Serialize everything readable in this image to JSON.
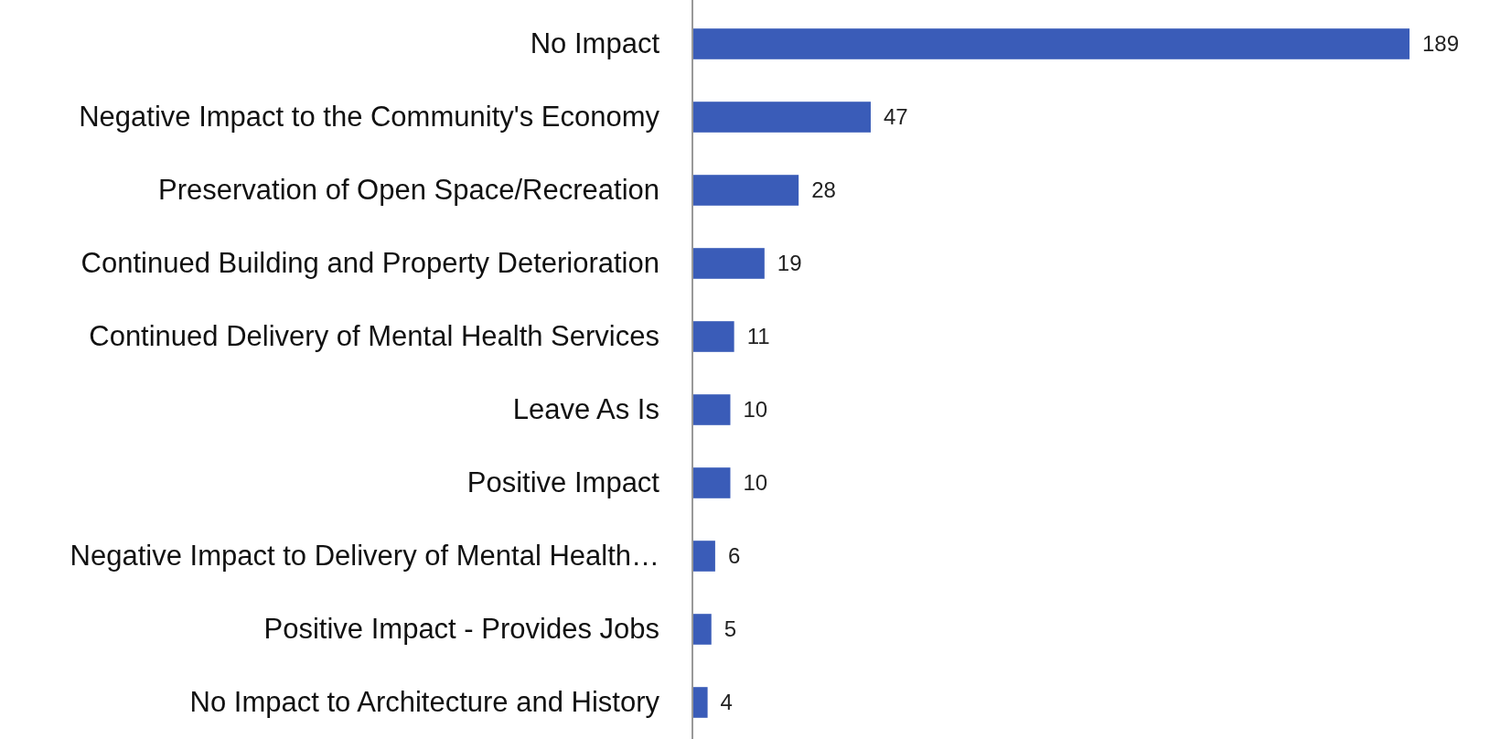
{
  "chart_data": {
    "type": "bar",
    "orientation": "horizontal",
    "categories": [
      "No Impact",
      "Negative Impact to the Community's Economy",
      "Preservation of Open Space/Recreation",
      "Continued Building and Property Deterioration",
      "Continued Delivery of Mental Health Services",
      "Leave As Is",
      "Positive Impact",
      "Negative Impact to Delivery of Mental Health…",
      "Positive Impact - Provides Jobs",
      "No Impact to Architecture and History"
    ],
    "values": [
      189,
      47,
      28,
      19,
      11,
      10,
      10,
      6,
      5,
      4
    ],
    "color": "#3a5cb8",
    "data_labels": true
  }
}
